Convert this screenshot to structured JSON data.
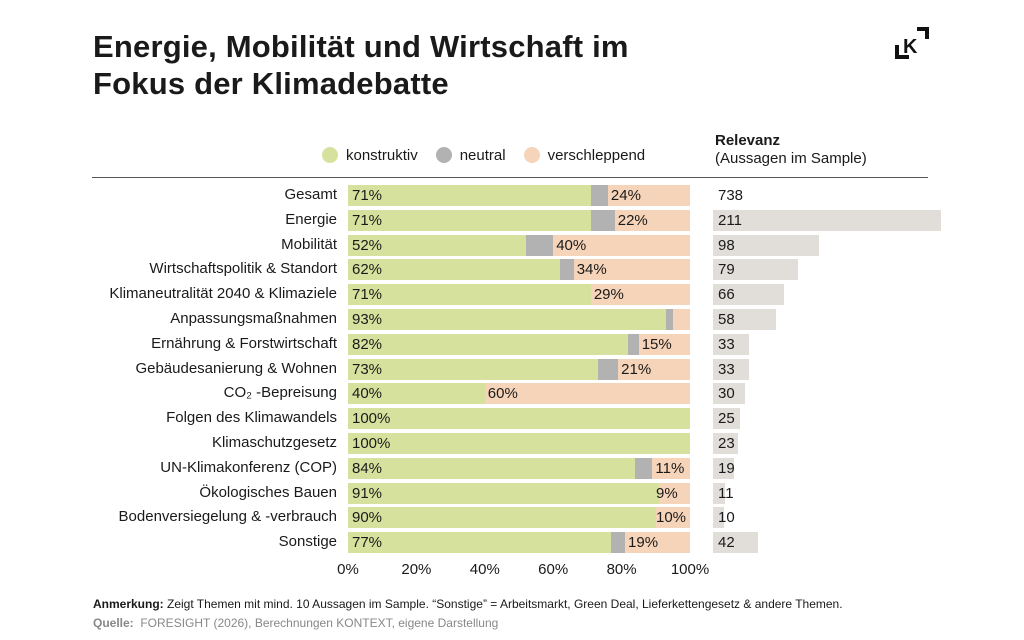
{
  "title_line1": "Energie, Mobilität und Wirtschaft im",
  "title_line2": "Fokus der Klimadebatte",
  "logo_text": "K",
  "relevance_header": {
    "title": "Relevanz",
    "subtitle": "(Aussagen im Sample)"
  },
  "note": {
    "label": "Anmerkung:",
    "text": " Zeigt Themen mit mind. 10 Aussagen im Sample. “Sonstige” = Arbeitsmarkt, Green Deal, Lieferkettengesetz & andere Themen."
  },
  "source": {
    "label": "Quelle:",
    "text": "  FORESIGHT (2026), Berechnungen KONTEXT, eigene Darstellung"
  },
  "colors": {
    "konstruktiv": "#d7e19e",
    "neutral": "#b2b2b2",
    "verschleppend": "#f6d4b9",
    "relevance": "#e1ddd9"
  },
  "chart_data": [
    {
      "type": "bar",
      "stacked": true,
      "orientation": "horizontal",
      "legend": [
        "konstruktiv",
        "neutral",
        "verschleppend"
      ],
      "legend_position": "top",
      "categories": [
        "Gesamt",
        "Energie",
        "Mobilität",
        "Wirtschaftspolitik & Standort",
        "Klimaneutralität 2040 & Klimaziele",
        "Anpassungsmaßnahmen",
        "Ernährung & Forstwirtschaft",
        "Gebäudesanierung & Wohnen",
        "CO₂ -Bepreisung",
        "Folgen des Klimawandels",
        "Klimaschutzgesetz",
        "UN-Klimakonferenz (COP)",
        "Ökologisches Bauen",
        "Bodenversiegelung & -verbrauch",
        "Sonstige"
      ],
      "series": [
        {
          "name": "konstruktiv",
          "values": [
            71,
            71,
            52,
            62,
            71,
            93,
            82,
            73,
            40,
            100,
            100,
            84,
            91,
            90,
            77
          ],
          "labels": [
            "71%",
            "71%",
            "52%",
            "62%",
            "71%",
            "93%",
            "82%",
            "73%",
            "40%",
            "100%",
            "100%",
            "84%",
            "91%",
            "90%",
            "77%"
          ]
        },
        {
          "name": "neutral",
          "values": [
            5,
            7,
            8,
            4,
            0,
            2,
            3,
            6,
            0,
            0,
            0,
            5,
            0,
            0,
            4
          ]
        },
        {
          "name": "verschleppend",
          "values": [
            24,
            22,
            40,
            34,
            29,
            5,
            15,
            21,
            60,
            0,
            0,
            11,
            9,
            10,
            19
          ],
          "labels": [
            "24%",
            "22%",
            "40%",
            "34%",
            "29%",
            "",
            "15%",
            "21%",
            "60%",
            "",
            "",
            "11%",
            "9%",
            "10%",
            "19%"
          ]
        }
      ],
      "xlim": [
        0,
        100
      ],
      "xticks": [
        "0%",
        "20%",
        "40%",
        "60%",
        "80%",
        "100%"
      ]
    },
    {
      "type": "bar",
      "orientation": "horizontal",
      "title": "Relevanz",
      "subtitle": "(Aussagen im Sample)",
      "values": [
        738,
        211,
        98,
        79,
        66,
        58,
        33,
        33,
        30,
        25,
        23,
        19,
        11,
        10,
        42
      ],
      "bar_hidden_for": [
        "Gesamt"
      ]
    }
  ]
}
